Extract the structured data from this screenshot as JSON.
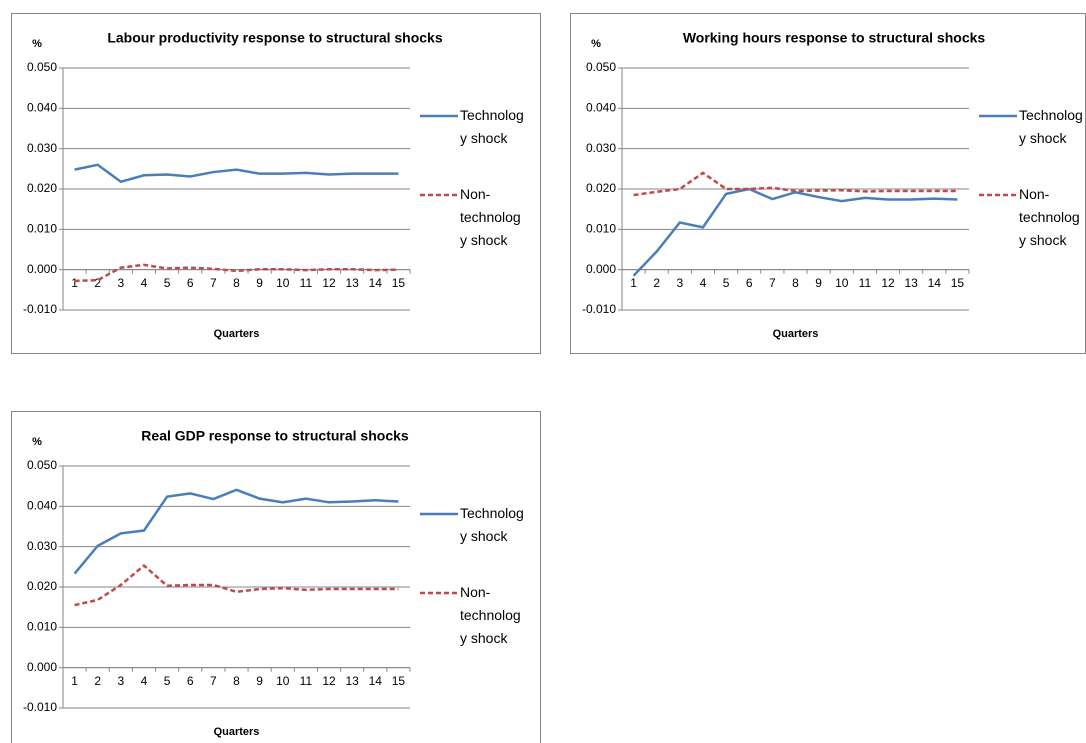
{
  "chart_data": [
    {
      "type": "line",
      "title": "Labour productivity response to structural shocks",
      "ylabel": "%",
      "xlabel": "Quarters",
      "categories": [
        "1",
        "2",
        "3",
        "4",
        "5",
        "6",
        "7",
        "8",
        "9",
        "10",
        "11",
        "12",
        "13",
        "14",
        "15"
      ],
      "series": [
        {
          "name": "Technology shock",
          "color": "#4a7ebb",
          "dashed": false,
          "values": [
            0.0248,
            0.026,
            0.0218,
            0.0234,
            0.0236,
            0.0231,
            0.0242,
            0.0248,
            0.0238,
            0.0238,
            0.024,
            0.0236,
            0.0238,
            0.0238,
            0.0238
          ]
        },
        {
          "name": "Non-technology shock",
          "color": "#be4b48",
          "dashed": true,
          "values": [
            -0.0028,
            -0.0026,
            0.0005,
            0.0012,
            0.0003,
            0.0005,
            0.0002,
            -0.0003,
            0.0001,
            0.0001,
            -0.0001,
            0.0001,
            0.0001,
            -0.0001,
            0.0
          ]
        }
      ],
      "ylim": [
        -0.01,
        0.05
      ],
      "yticks": [
        {
          "value": -0.01,
          "label": "-0.010"
        },
        {
          "value": 0,
          "label": "0.000"
        },
        {
          "value": 0.01,
          "label": "0.010"
        },
        {
          "value": 0.02,
          "label": "0.020"
        },
        {
          "value": 0.03,
          "label": "0.030"
        },
        {
          "value": 0.04,
          "label": "0.040"
        },
        {
          "value": 0.05,
          "label": "0.050"
        }
      ],
      "grid": true,
      "legend": "right"
    },
    {
      "type": "line",
      "title": "Working hours response to structural shocks",
      "ylabel": "%",
      "xlabel": "Quarters",
      "categories": [
        "1",
        "2",
        "3",
        "4",
        "5",
        "6",
        "7",
        "8",
        "9",
        "10",
        "11",
        "12",
        "13",
        "14",
        "15"
      ],
      "series": [
        {
          "name": "Technology shock",
          "color": "#4a7ebb",
          "dashed": false,
          "values": [
            -0.0015,
            0.0045,
            0.0117,
            0.0105,
            0.0188,
            0.02,
            0.0175,
            0.0192,
            0.018,
            0.017,
            0.0178,
            0.0174,
            0.0174,
            0.0176,
            0.0174
          ]
        },
        {
          "name": "Non-technology shock",
          "color": "#be4b48",
          "dashed": true,
          "values": [
            0.0185,
            0.0193,
            0.02,
            0.024,
            0.02,
            0.02,
            0.0203,
            0.0195,
            0.0196,
            0.0197,
            0.0194,
            0.0195,
            0.0195,
            0.0195,
            0.0195
          ]
        }
      ],
      "ylim": [
        -0.01,
        0.05
      ],
      "yticks": [
        {
          "value": -0.01,
          "label": "-0.010"
        },
        {
          "value": 0,
          "label": "0.000"
        },
        {
          "value": 0.01,
          "label": "0.010"
        },
        {
          "value": 0.02,
          "label": "0.020"
        },
        {
          "value": 0.03,
          "label": "0.030"
        },
        {
          "value": 0.04,
          "label": "0.040"
        },
        {
          "value": 0.05,
          "label": "0.050"
        }
      ],
      "grid": true,
      "legend": "right"
    },
    {
      "type": "line",
      "title": "Real GDP response to structural shocks",
      "ylabel": "%",
      "xlabel": "Quarters",
      "categories": [
        "1",
        "2",
        "3",
        "4",
        "5",
        "6",
        "7",
        "8",
        "9",
        "10",
        "11",
        "12",
        "13",
        "14",
        "15"
      ],
      "series": [
        {
          "name": "Technology shock",
          "color": "#4a7ebb",
          "dashed": false,
          "values": [
            0.0233,
            0.0302,
            0.0333,
            0.034,
            0.0424,
            0.0432,
            0.0418,
            0.0441,
            0.0419,
            0.041,
            0.0419,
            0.041,
            0.0412,
            0.0415,
            0.0412
          ]
        },
        {
          "name": "Non-technology shock",
          "color": "#be4b48",
          "dashed": true,
          "values": [
            0.0155,
            0.0168,
            0.0205,
            0.0253,
            0.0203,
            0.0205,
            0.0205,
            0.0188,
            0.0195,
            0.0197,
            0.0193,
            0.0195,
            0.0195,
            0.0195,
            0.0195
          ]
        }
      ],
      "ylim": [
        -0.01,
        0.05
      ],
      "yticks": [
        {
          "value": -0.01,
          "label": "-0.010"
        },
        {
          "value": 0,
          "label": "0.000"
        },
        {
          "value": 0.01,
          "label": "0.010"
        },
        {
          "value": 0.02,
          "label": "0.020"
        },
        {
          "value": 0.03,
          "label": "0.030"
        },
        {
          "value": 0.04,
          "label": "0.040"
        },
        {
          "value": 0.05,
          "label": "0.050"
        }
      ],
      "grid": true,
      "legend": "right"
    }
  ]
}
